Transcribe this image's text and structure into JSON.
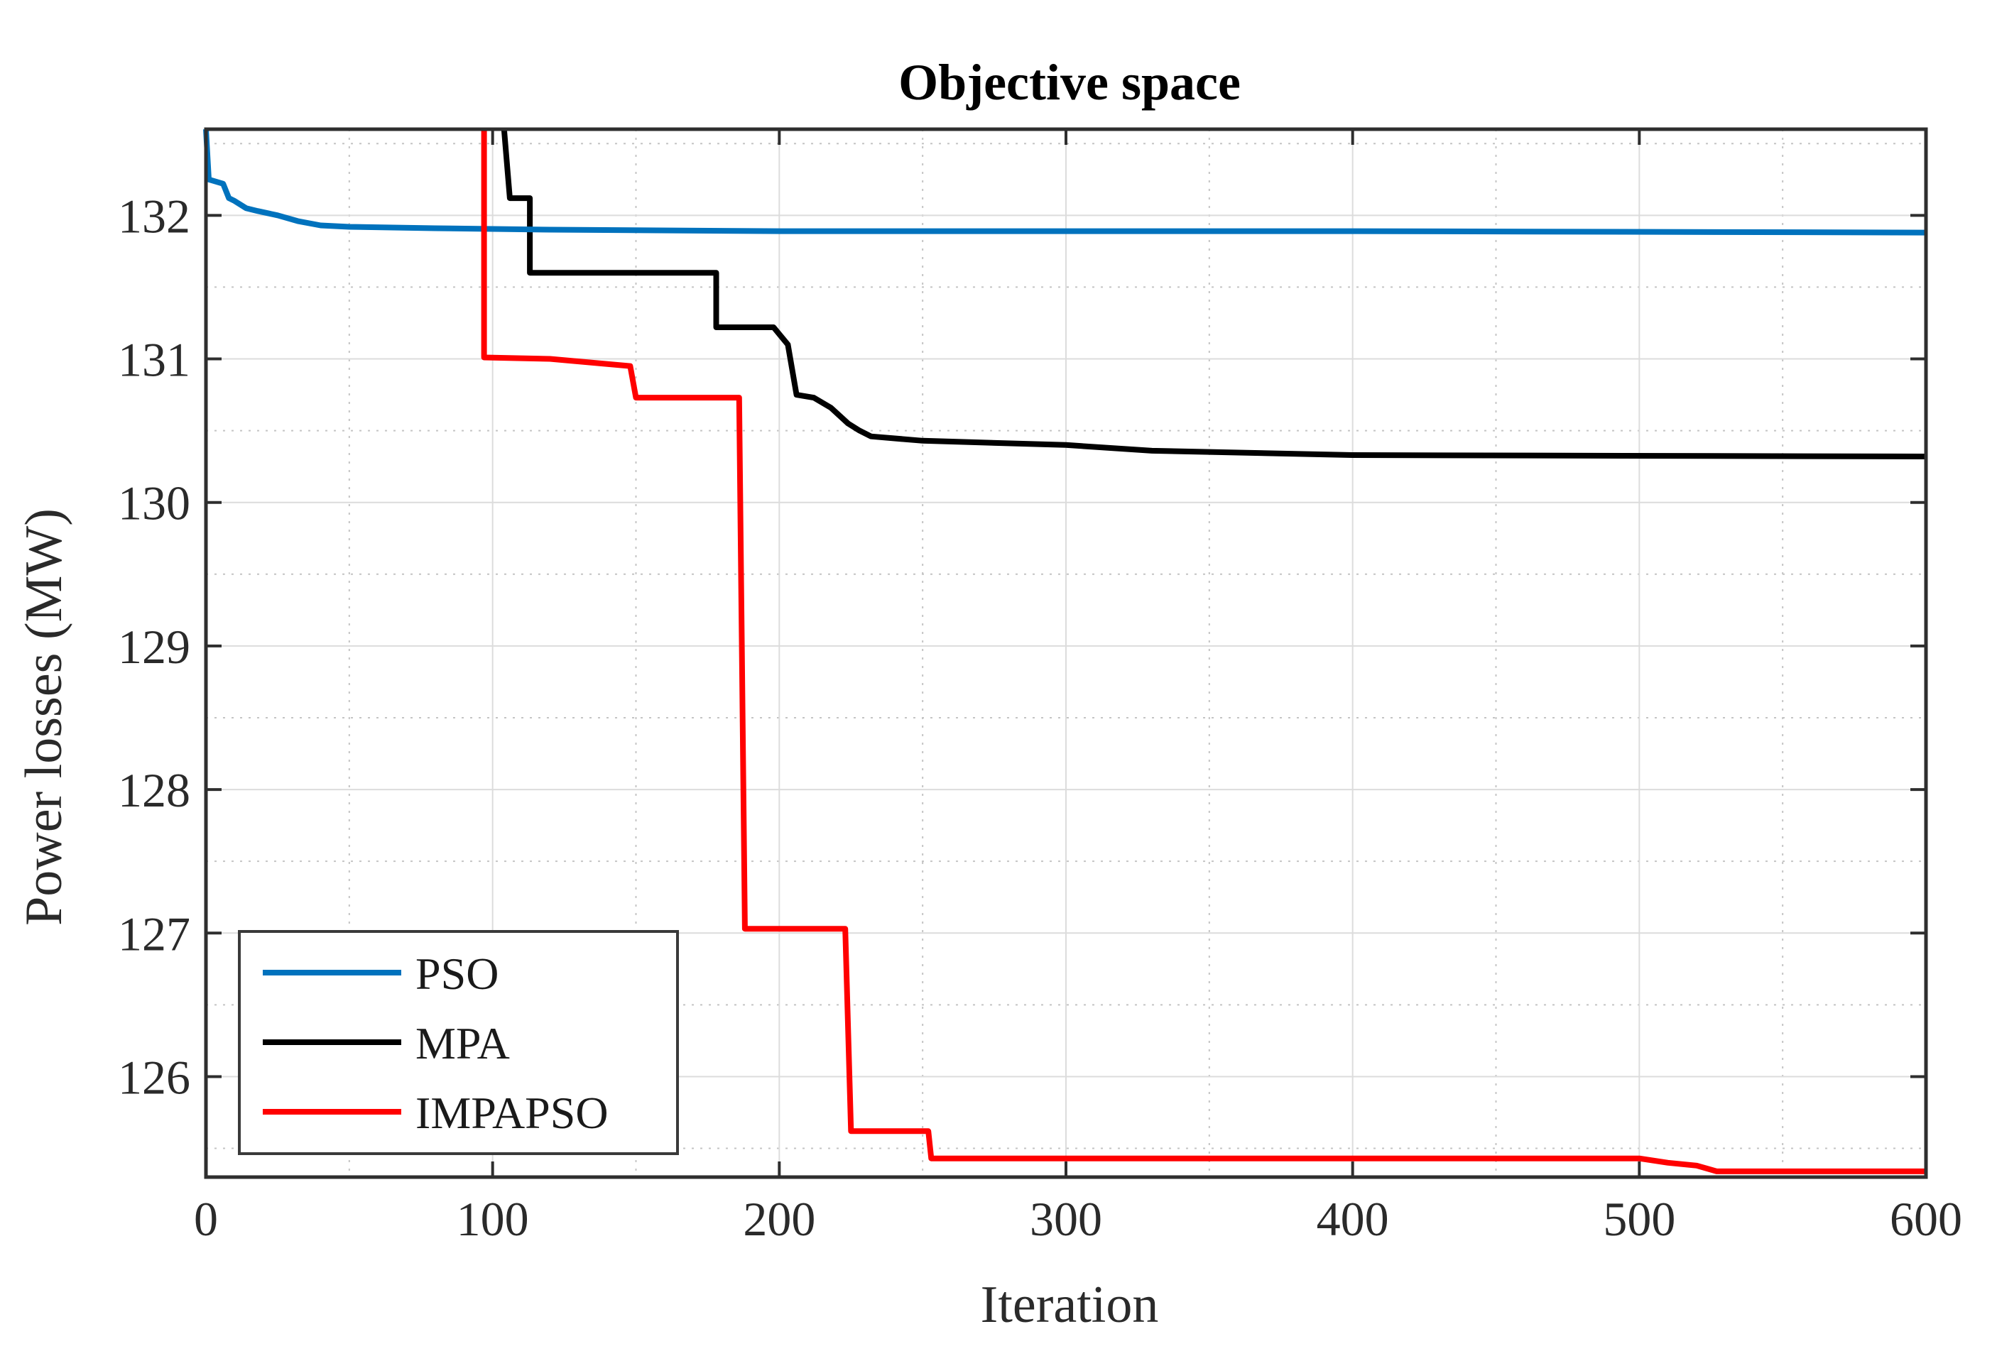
{
  "chart_data": {
    "type": "line",
    "title": "Objective space",
    "xlabel": "Iteration",
    "ylabel": "Power losses (MW)",
    "xlim": [
      0,
      600
    ],
    "ylim": [
      125.3,
      132.6
    ],
    "xticks": [
      0,
      100,
      200,
      300,
      400,
      500,
      600
    ],
    "yticks": [
      126,
      127,
      128,
      129,
      130,
      131,
      132
    ],
    "grid": true,
    "minor_grid": true,
    "legend_position": "bottom-left",
    "series": [
      {
        "name": "PSO",
        "color": "#0072bd",
        "points": [
          [
            0,
            132.6
          ],
          [
            1,
            132.25
          ],
          [
            6,
            132.22
          ],
          [
            8,
            132.12
          ],
          [
            10,
            132.1
          ],
          [
            14,
            132.05
          ],
          [
            18,
            132.03
          ],
          [
            25,
            132.0
          ],
          [
            32,
            131.96
          ],
          [
            40,
            131.93
          ],
          [
            50,
            131.92
          ],
          [
            80,
            131.91
          ],
          [
            120,
            131.9
          ],
          [
            200,
            131.89
          ],
          [
            400,
            131.89
          ],
          [
            600,
            131.88
          ]
        ]
      },
      {
        "name": "MPA",
        "color": "#000000",
        "points": [
          [
            104,
            132.6
          ],
          [
            106,
            132.12
          ],
          [
            113,
            132.12
          ],
          [
            113,
            131.6
          ],
          [
            178,
            131.6
          ],
          [
            178,
            131.22
          ],
          [
            198,
            131.22
          ],
          [
            203,
            131.1
          ],
          [
            206,
            130.75
          ],
          [
            212,
            130.73
          ],
          [
            218,
            130.66
          ],
          [
            224,
            130.55
          ],
          [
            228,
            130.5
          ],
          [
            232,
            130.46
          ],
          [
            250,
            130.43
          ],
          [
            300,
            130.4
          ],
          [
            330,
            130.36
          ],
          [
            400,
            130.33
          ],
          [
            600,
            130.32
          ]
        ]
      },
      {
        "name": "IMPAPSO",
        "color": "#ff0000",
        "points": [
          [
            97,
            132.6
          ],
          [
            97,
            131.01
          ],
          [
            120,
            131.0
          ],
          [
            148,
            130.95
          ],
          [
            150,
            130.73
          ],
          [
            186,
            130.73
          ],
          [
            188,
            127.03
          ],
          [
            223,
            127.03
          ],
          [
            225,
            125.62
          ],
          [
            252,
            125.62
          ],
          [
            253,
            125.43
          ],
          [
            500,
            125.43
          ],
          [
            510,
            125.4
          ],
          [
            520,
            125.38
          ],
          [
            527,
            125.34
          ],
          [
            600,
            125.34
          ]
        ]
      }
    ]
  }
}
